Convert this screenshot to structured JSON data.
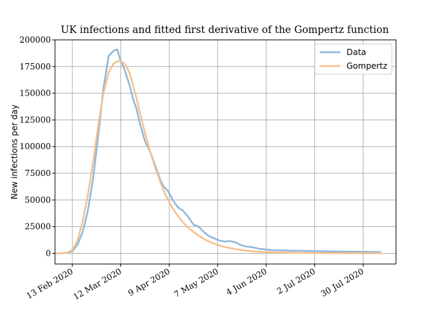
{
  "chart_data": {
    "type": "line",
    "title": "UK infections and fitted first derivative of the Gompertz function",
    "xlabel": "",
    "ylabel": "New infections per day",
    "x_ticks": [
      "13 Feb 2020",
      "12 Mar 2020",
      "9 Apr 2020",
      "7 May 2020",
      "4 Jun 2020",
      "2 Jul 2020",
      "30 Jul 2020"
    ],
    "y_ticks": [
      "0",
      "25000",
      "50000",
      "75000",
      "100000",
      "125000",
      "150000",
      "175000",
      "200000"
    ],
    "xlim": [
      "2020-02-03",
      "2020-08-18"
    ],
    "ylim": [
      -10000,
      200000
    ],
    "grid": true,
    "legend_position": "top-right",
    "colors": {
      "Data": "#8fb8db",
      "Gompertz": "#f6bf8c"
    },
    "series": [
      {
        "name": "Data",
        "x": [
          "2020-02-04",
          "2020-02-07",
          "2020-02-10",
          "2020-02-13",
          "2020-02-16",
          "2020-02-19",
          "2020-02-22",
          "2020-02-25",
          "2020-02-28",
          "2020-03-02",
          "2020-03-05",
          "2020-03-08",
          "2020-03-10",
          "2020-03-12",
          "2020-03-14",
          "2020-03-16",
          "2020-03-17",
          "2020-03-18",
          "2020-03-19",
          "2020-03-21",
          "2020-03-23",
          "2020-03-26",
          "2020-03-29",
          "2020-04-01",
          "2020-04-04",
          "2020-04-06",
          "2020-04-08",
          "2020-04-11",
          "2020-04-14",
          "2020-04-17",
          "2020-04-20",
          "2020-04-23",
          "2020-04-26",
          "2020-04-29",
          "2020-05-02",
          "2020-05-05",
          "2020-05-08",
          "2020-05-11",
          "2020-05-14",
          "2020-05-17",
          "2020-05-20",
          "2020-05-23",
          "2020-05-26",
          "2020-05-29",
          "2020-06-01",
          "2020-06-04",
          "2020-06-07",
          "2020-06-10",
          "2020-06-15",
          "2020-06-20",
          "2020-06-25",
          "2020-06-30",
          "2020-07-05",
          "2020-07-10",
          "2020-07-15",
          "2020-07-20",
          "2020-07-25",
          "2020-07-30",
          "2020-08-04",
          "2020-08-09"
        ],
        "values": [
          0,
          100,
          500,
          2000,
          8000,
          20000,
          40000,
          70000,
          110000,
          155000,
          185000,
          190000,
          191000,
          180000,
          173000,
          163000,
          158000,
          152000,
          145000,
          136000,
          122000,
          105000,
          95000,
          82000,
          68000,
          62000,
          59000,
          50000,
          43000,
          40000,
          34000,
          27000,
          25000,
          20000,
          16000,
          14000,
          12000,
          11000,
          11500,
          10500,
          8000,
          6500,
          6000,
          5000,
          4000,
          3500,
          3000,
          2800,
          2600,
          2400,
          2300,
          2100,
          2000,
          1800,
          1700,
          1600,
          1500,
          1400,
          1300,
          1200
        ]
      },
      {
        "name": "Gompertz",
        "x": [
          "2020-02-04",
          "2020-02-07",
          "2020-02-10",
          "2020-02-13",
          "2020-02-16",
          "2020-02-19",
          "2020-02-22",
          "2020-02-25",
          "2020-02-28",
          "2020-03-02",
          "2020-03-05",
          "2020-03-08",
          "2020-03-10",
          "2020-03-12",
          "2020-03-14",
          "2020-03-16",
          "2020-03-17",
          "2020-03-18",
          "2020-03-19",
          "2020-03-21",
          "2020-03-23",
          "2020-03-26",
          "2020-03-29",
          "2020-04-01",
          "2020-04-04",
          "2020-04-06",
          "2020-04-08",
          "2020-04-11",
          "2020-04-14",
          "2020-04-17",
          "2020-04-20",
          "2020-04-23",
          "2020-04-26",
          "2020-04-29",
          "2020-05-02",
          "2020-05-05",
          "2020-05-08",
          "2020-05-11",
          "2020-05-14",
          "2020-05-17",
          "2020-05-20",
          "2020-05-23",
          "2020-05-26",
          "2020-05-29",
          "2020-06-01",
          "2020-06-04",
          "2020-06-07",
          "2020-06-10",
          "2020-06-15",
          "2020-06-20",
          "2020-06-25",
          "2020-06-30",
          "2020-07-05",
          "2020-07-10",
          "2020-07-15",
          "2020-07-20",
          "2020-07-25",
          "2020-07-30",
          "2020-08-04",
          "2020-08-09"
        ],
        "values": [
          0,
          100,
          600,
          3000,
          12000,
          30000,
          55000,
          85000,
          120000,
          150000,
          170000,
          178000,
          180000,
          180000,
          178000,
          173000,
          169000,
          164000,
          158000,
          146000,
          132000,
          113000,
          95000,
          80000,
          66000,
          58000,
          51000,
          42000,
          35000,
          29000,
          24000,
          20000,
          16500,
          13500,
          11000,
          9000,
          7300,
          6000,
          4900,
          4000,
          3200,
          2600,
          2100,
          1700,
          1400,
          1150,
          950,
          800,
          600,
          450,
          350,
          280,
          220,
          180,
          150,
          120,
          100,
          80,
          70,
          60
        ]
      }
    ]
  }
}
